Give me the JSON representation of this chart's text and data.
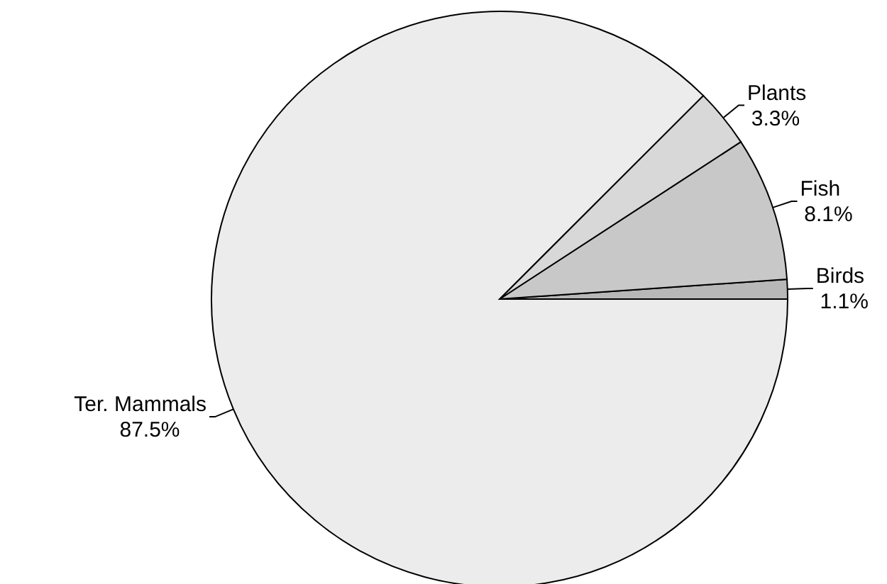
{
  "chart_data": {
    "type": "pie",
    "categories": [
      "Birds",
      "Fish",
      "Plants",
      "Ter. Mammals"
    ],
    "values": [
      1.1,
      8.1,
      3.3,
      87.5
    ],
    "colors": [
      "#b8b8b8",
      "#c8c8c8",
      "#d8d8d8",
      "#ececec"
    ],
    "value_labels": [
      "1.1%",
      "8.1%",
      "3.3%",
      "87.5%"
    ]
  }
}
